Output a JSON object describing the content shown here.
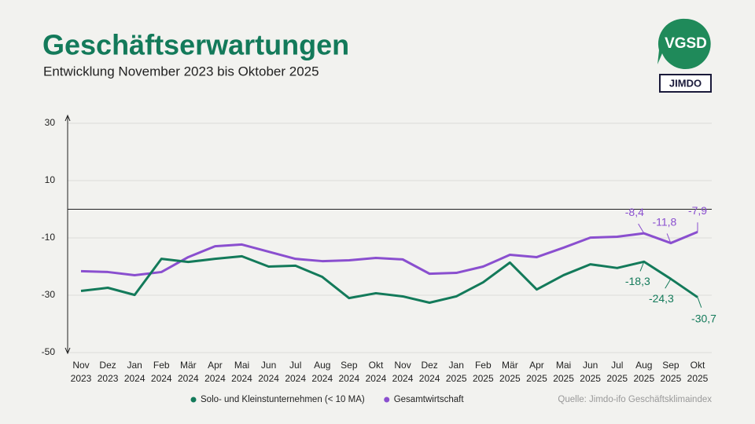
{
  "chart_data": {
    "type": "line",
    "title": "Geschäftserwartungen",
    "subtitle": "Entwicklung November 2023 bis Oktober 2025",
    "logo": {
      "top": "VGSD",
      "bottom": "JIMDO"
    },
    "source": "Quelle: Jimdo-ifo Geschäftsklimaindex",
    "categories": [
      "Nov 2023",
      "Dez 2023",
      "Jan 2024",
      "Feb 2024",
      "Mär 2024",
      "Apr 2024",
      "Mai 2024",
      "Jun 2024",
      "Jul 2024",
      "Aug 2024",
      "Sep 2024",
      "Okt 2024",
      "Nov 2024",
      "Dez 2024",
      "Jan 2025",
      "Feb 2025",
      "Mär 2025",
      "Apr 2025",
      "Mai 2025",
      "Jun 2025",
      "Jul 2025",
      "Aug 2025",
      "Sep 2025",
      "Okt 2025"
    ],
    "series": [
      {
        "name": "Solo- und Kleinstunternehmen (< 10 MA)",
        "color": "#137a5a",
        "values": [
          -28.5,
          -27.4,
          -29.9,
          -17.3,
          -18.4,
          -17.3,
          -16.4,
          -20,
          -19.7,
          -23.6,
          -31,
          -29.3,
          -30.4,
          -32.6,
          -30.4,
          -25.5,
          -18.6,
          -28,
          -23,
          -19.2,
          -20.5,
          -18.3,
          -24.3,
          -30.7
        ],
        "value_labels": [
          null,
          null,
          null,
          null,
          null,
          null,
          null,
          null,
          null,
          null,
          null,
          null,
          null,
          null,
          null,
          null,
          null,
          null,
          null,
          null,
          null,
          "-18,3",
          "-24,3",
          "-30,7"
        ]
      },
      {
        "name": "Gesamtwirtschaft",
        "color": "#8a4fcf",
        "values": [
          -21.6,
          -21.9,
          -23,
          -21.9,
          -16.7,
          -12.9,
          -12.3,
          -14.8,
          -17.3,
          -18.1,
          -17.8,
          -17,
          -17.5,
          -22.5,
          -22.2,
          -20,
          -15.9,
          -16.7,
          -13.4,
          -9.9,
          -9.6,
          -8.4,
          -11.8,
          -7.9
        ],
        "value_labels": [
          null,
          null,
          null,
          null,
          null,
          null,
          null,
          null,
          null,
          null,
          null,
          null,
          null,
          null,
          null,
          null,
          null,
          null,
          null,
          null,
          null,
          "-8,4",
          "-11,8",
          "-7,9"
        ]
      }
    ],
    "ylim": [
      -50,
      30
    ],
    "yticks": [
      30,
      10,
      -10,
      -30,
      -50
    ],
    "grid": true
  }
}
